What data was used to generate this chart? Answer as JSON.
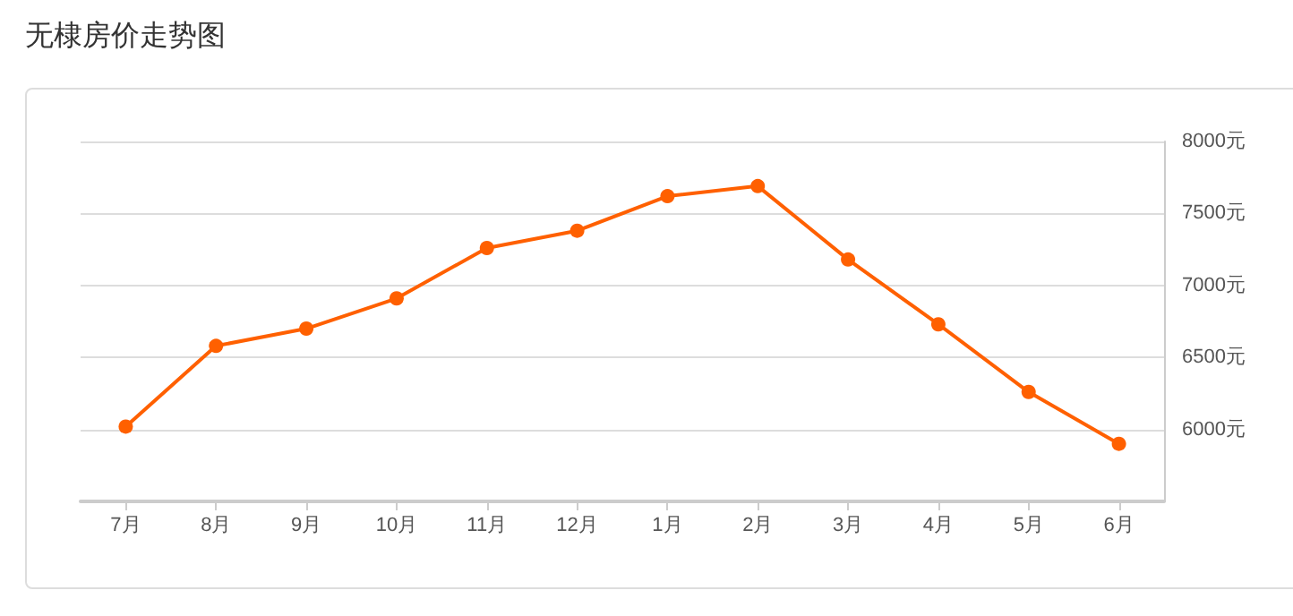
{
  "chart_data": {
    "type": "line",
    "title": "无棣房价走势图",
    "categories": [
      "7月",
      "8月",
      "9月",
      "10月",
      "11月",
      "12月",
      "1月",
      "2月",
      "3月",
      "4月",
      "5月",
      "6月"
    ],
    "series": [
      {
        "color": "#ff6000",
        "values": [
          6020,
          6580,
          6700,
          6910,
          7260,
          7380,
          7620,
          7690,
          7180,
          6730,
          6260,
          5900
        ]
      }
    ],
    "ylim": [
      5500,
      8000
    ],
    "yticks": [
      {
        "value": 6000,
        "label": "6000元"
      },
      {
        "value": 6500,
        "label": "6500元"
      },
      {
        "value": 7000,
        "label": "7000元"
      },
      {
        "value": 7500,
        "label": "7500元"
      },
      {
        "value": 8000,
        "label": "8000元"
      }
    ],
    "grid": "y",
    "marker": "circle",
    "line_style": "solid"
  }
}
